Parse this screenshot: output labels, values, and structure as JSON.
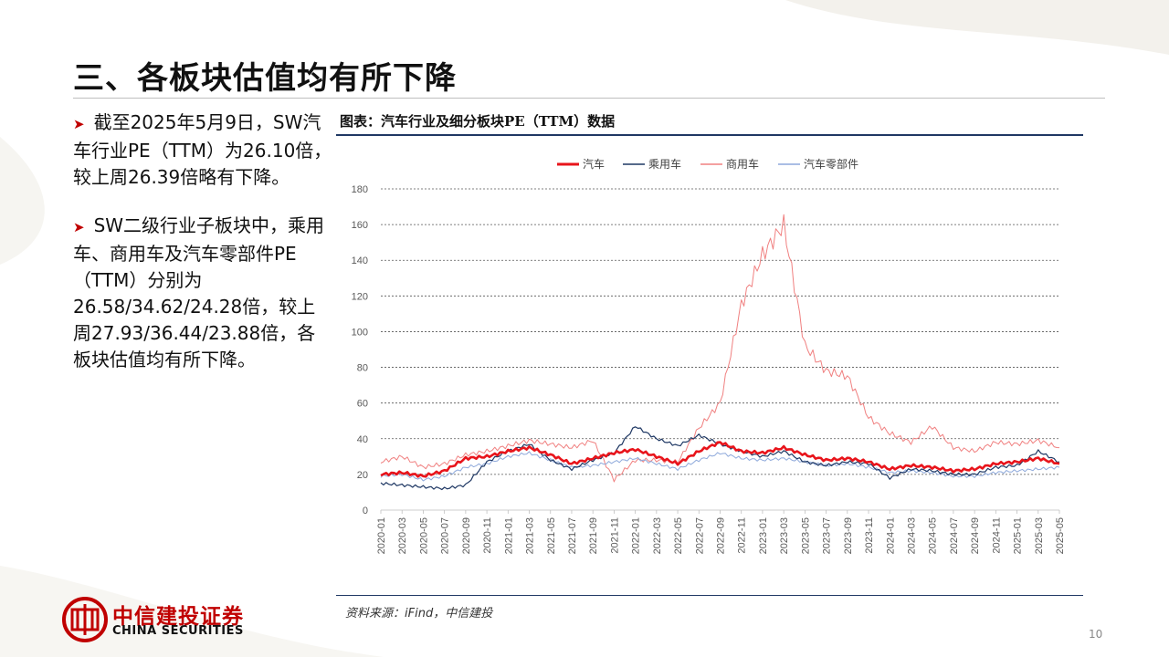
{
  "slide": {
    "title": "三、各板块估值均有所下降",
    "page_number": "10"
  },
  "bullets": [
    {
      "text": "截至2025年5月9日，SW汽车行业PE（TTM）为26.10倍，较上周26.39倍略有下降。"
    },
    {
      "text": "SW二级行业子板块中，乘用车、商用车及汽车零部件PE（TTM）分别为26.58/34.62/24.28倍，较上周27.93/36.44/23.88倍，各板块估值均有所下降。"
    }
  ],
  "chart_title": "图表：汽车行业及细分板块PE（TTM）数据",
  "source": "资料来源：iFind，中信建投",
  "logo": {
    "cn": "中信建投证券",
    "en": "CHINA SECURITIES"
  },
  "colors": {
    "auto": "#e8141b",
    "passenger": "#1f3864",
    "commercial": "#f08080",
    "parts": "#8ea9db",
    "accent": "#c00000"
  },
  "chart_data": {
    "type": "line",
    "title": "汽车行业及细分板块PE（TTM）数据",
    "ylim": [
      0,
      180
    ],
    "yticks": [
      "0",
      "20",
      "40",
      "60",
      "80",
      "100",
      "120",
      "140",
      "160",
      "180"
    ],
    "x": [
      "2020-01",
      "2020-03",
      "2020-05",
      "2020-07",
      "2020-09",
      "2020-11",
      "2021-01",
      "2021-03",
      "2021-05",
      "2021-07",
      "2021-09",
      "2021-11",
      "2022-01",
      "2022-03",
      "2022-05",
      "2022-07",
      "2022-09",
      "2022-11",
      "2023-01",
      "2023-03",
      "2023-05",
      "2023-07",
      "2023-09",
      "2023-11",
      "2024-01",
      "2024-03",
      "2024-05",
      "2024-07",
      "2024-09",
      "2024-11",
      "2025-01",
      "2025-03",
      "2025-05"
    ],
    "legend_position": "top",
    "series": [
      {
        "name": "汽车",
        "key": "auto",
        "width": 2.6,
        "values": [
          20,
          21,
          19,
          22,
          29,
          30,
          33,
          35,
          31,
          26,
          29,
          32,
          34,
          30,
          26,
          33,
          38,
          33,
          32,
          35,
          31,
          28,
          29,
          27,
          23,
          25,
          24,
          22,
          23,
          26,
          27,
          29,
          26
        ]
      },
      {
        "name": "乘用车",
        "key": "passenger",
        "width": 1.2,
        "values": [
          15,
          14,
          13,
          12,
          14,
          27,
          33,
          37,
          28,
          23,
          28,
          32,
          47,
          40,
          36,
          42,
          37,
          33,
          30,
          33,
          27,
          25,
          27,
          26,
          18,
          23,
          22,
          20,
          20,
          24,
          25,
          33,
          27
        ]
      },
      {
        "name": "商用车",
        "key": "commercial",
        "width": 1.0,
        "values": [
          27,
          30,
          24,
          26,
          31,
          33,
          36,
          39,
          37,
          35,
          39,
          17,
          28,
          28,
          27,
          46,
          60,
          115,
          143,
          160,
          92,
          78,
          75,
          52,
          43,
          38,
          47,
          35,
          33,
          38,
          37,
          39,
          35
        ]
      },
      {
        "name": "汽车零部件",
        "key": "parts",
        "width": 1.0,
        "values": [
          19,
          20,
          17,
          19,
          24,
          26,
          30,
          32,
          28,
          24,
          25,
          27,
          29,
          26,
          23,
          28,
          32,
          29,
          28,
          29,
          27,
          25,
          26,
          24,
          21,
          22,
          21,
          19,
          19,
          21,
          22,
          23,
          24
        ]
      }
    ]
  }
}
